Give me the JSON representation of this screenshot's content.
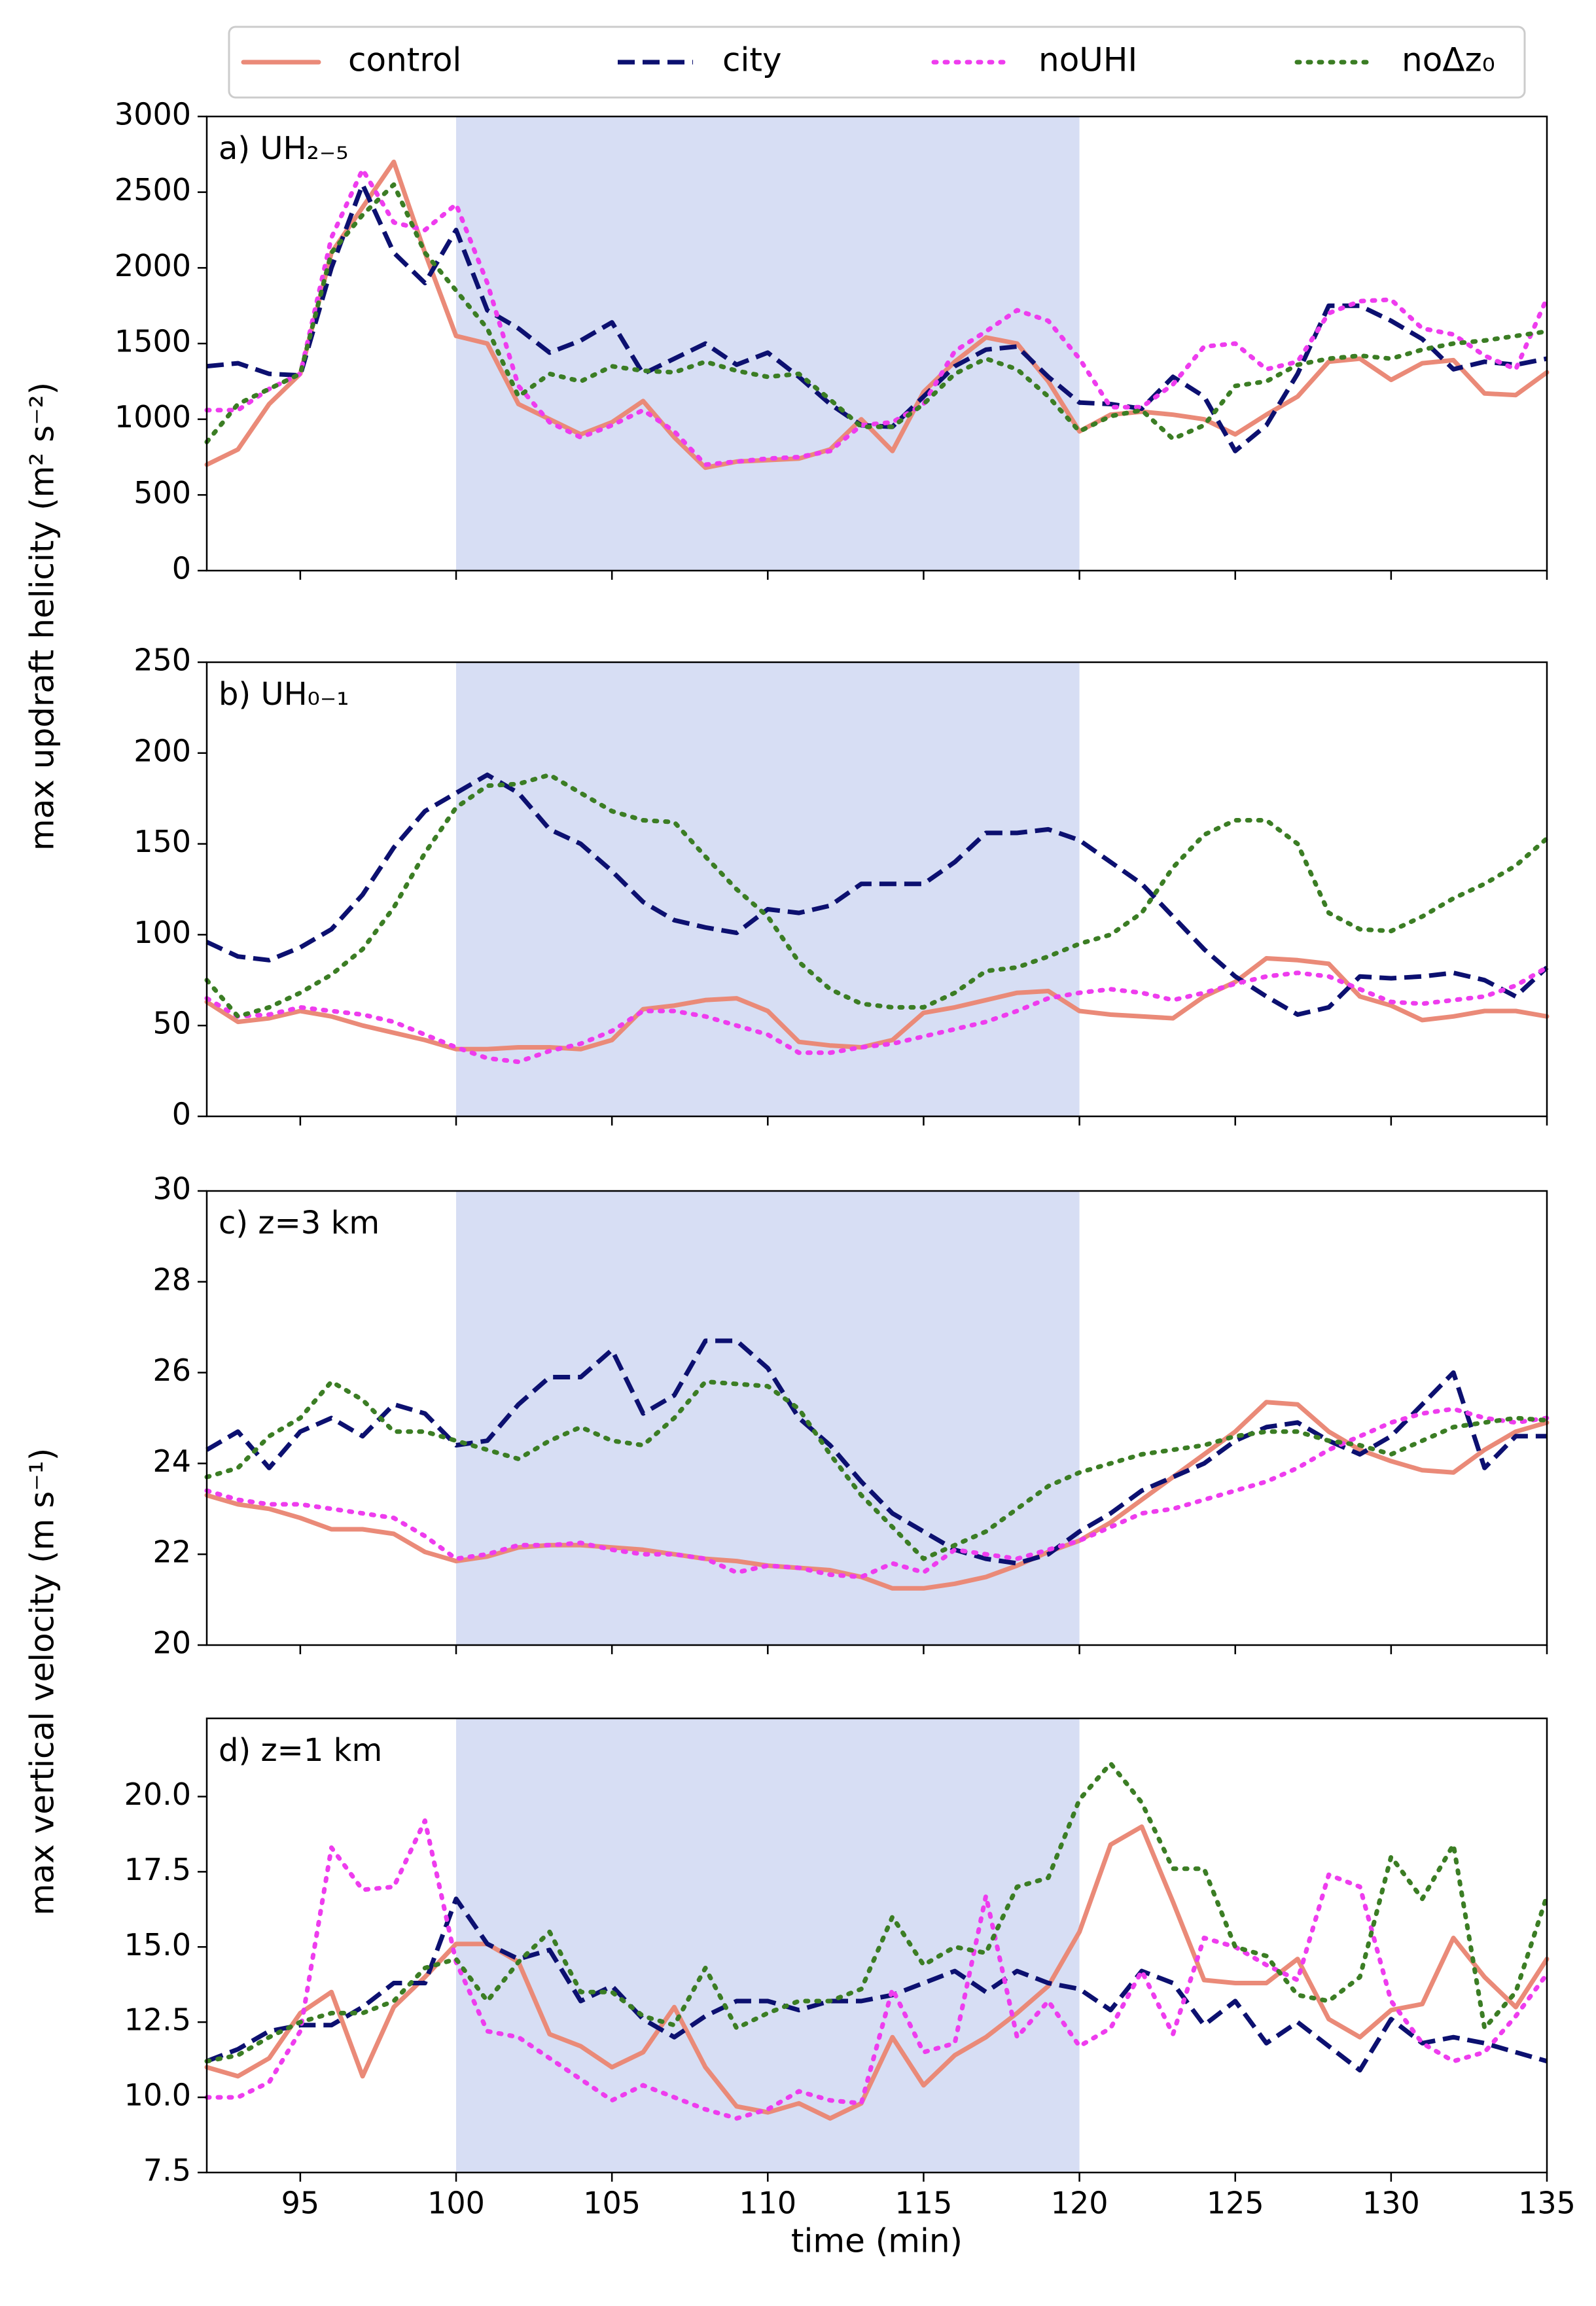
{
  "chart_data": [
    {
      "type": "line",
      "annotation": "a) UH₂₋₅",
      "ylabel": "max updraft helicity (m² s⁻²)",
      "x": [
        92,
        93,
        94,
        95,
        96,
        97,
        98,
        99,
        100,
        101,
        102,
        103,
        104,
        105,
        106,
        107,
        108,
        109,
        110,
        111,
        112,
        113,
        114,
        115,
        116,
        117,
        118,
        119,
        120,
        121,
        122,
        123,
        124,
        125,
        126,
        127,
        128,
        129,
        130,
        131,
        132,
        133,
        134,
        135
      ],
      "xlim": [
        92,
        135
      ],
      "xticks": [
        95,
        100,
        105,
        110,
        115,
        120,
        125,
        130,
        135
      ],
      "xtick_labels": false,
      "ylim": [
        0,
        3000
      ],
      "yticks": [
        0,
        500,
        1000,
        1500,
        2000,
        2500,
        3000
      ],
      "shade": [
        100,
        120
      ],
      "shade_color": "#d7def4",
      "series": [
        {
          "name": "control",
          "color": "#ea8a78",
          "style": "solid",
          "values": [
            700,
            800,
            1100,
            1300,
            2100,
            2400,
            2700,
            2100,
            1550,
            1500,
            1100,
            1000,
            900,
            980,
            1120,
            880,
            680,
            720,
            730,
            740,
            800,
            1000,
            790,
            1180,
            1380,
            1540,
            1500,
            1250,
            920,
            1030,
            1050,
            1030,
            1000,
            900,
            1030,
            1150,
            1380,
            1400,
            1260,
            1370,
            1390,
            1170,
            1160,
            1310
          ]
        },
        {
          "name": "city",
          "color": "#0c1070",
          "style": "dashed",
          "values": [
            1350,
            1370,
            1300,
            1290,
            2000,
            2550,
            2100,
            1900,
            2250,
            1720,
            1600,
            1440,
            1520,
            1640,
            1300,
            1400,
            1500,
            1360,
            1440,
            1280,
            1100,
            960,
            950,
            1150,
            1350,
            1460,
            1480,
            1280,
            1110,
            1100,
            1070,
            1280,
            1150,
            790,
            960,
            1300,
            1750,
            1750,
            1650,
            1530,
            1330,
            1380,
            1360,
            1400
          ]
        },
        {
          "name": "noUHI",
          "color": "#ee3cee",
          "style": "dotted",
          "values": [
            1060,
            1060,
            1200,
            1300,
            2200,
            2650,
            2300,
            2250,
            2420,
            1900,
            1220,
            980,
            880,
            960,
            1060,
            920,
            700,
            720,
            740,
            750,
            790,
            960,
            980,
            1100,
            1450,
            1580,
            1720,
            1650,
            1400,
            1080,
            1080,
            1230,
            1480,
            1500,
            1330,
            1380,
            1700,
            1780,
            1790,
            1600,
            1560,
            1420,
            1330,
            1800
          ]
        },
        {
          "name": "noΔz₀",
          "color": "#3b7d24",
          "style": "dotted",
          "values": [
            850,
            1100,
            1200,
            1300,
            2100,
            2350,
            2550,
            2100,
            1850,
            1600,
            1150,
            1300,
            1250,
            1350,
            1320,
            1310,
            1380,
            1320,
            1280,
            1300,
            1130,
            950,
            950,
            1100,
            1300,
            1400,
            1330,
            1150,
            920,
            1020,
            1060,
            870,
            960,
            1220,
            1250,
            1360,
            1400,
            1420,
            1400,
            1460,
            1500,
            1520,
            1550,
            1580
          ]
        }
      ]
    },
    {
      "type": "line",
      "annotation": "b) UH₀₋₁",
      "x": [
        92,
        93,
        94,
        95,
        96,
        97,
        98,
        99,
        100,
        101,
        102,
        103,
        104,
        105,
        106,
        107,
        108,
        109,
        110,
        111,
        112,
        113,
        114,
        115,
        116,
        117,
        118,
        119,
        120,
        121,
        122,
        123,
        124,
        125,
        126,
        127,
        128,
        129,
        130,
        131,
        132,
        133,
        134,
        135
      ],
      "xlim": [
        92,
        135
      ],
      "xticks": [
        95,
        100,
        105,
        110,
        115,
        120,
        125,
        130,
        135
      ],
      "xtick_labels": false,
      "ylim": [
        0,
        250
      ],
      "yticks": [
        0,
        50,
        100,
        150,
        200,
        250
      ],
      "shade": [
        100,
        120
      ],
      "series": [
        {
          "values": [
            63,
            52,
            54,
            58,
            55,
            50,
            46,
            42,
            37,
            37,
            38,
            38,
            37,
            42,
            59,
            61,
            64,
            65,
            58,
            41,
            39,
            38,
            42,
            57,
            60,
            64,
            68,
            69,
            58,
            56,
            55,
            54,
            66,
            74,
            87,
            86,
            84,
            66,
            61,
            53,
            55,
            58,
            58,
            55
          ]
        },
        {
          "values": [
            96,
            88,
            86,
            93,
            103,
            122,
            148,
            168,
            178,
            188,
            178,
            158,
            150,
            135,
            118,
            108,
            104,
            101,
            114,
            112,
            116,
            128,
            128,
            128,
            140,
            156,
            156,
            158,
            152,
            140,
            128,
            110,
            92,
            77,
            66,
            56,
            60,
            77,
            76,
            77,
            79,
            75,
            66,
            82
          ]
        },
        {
          "values": [
            65,
            55,
            56,
            60,
            58,
            56,
            52,
            45,
            38,
            32,
            30,
            36,
            40,
            47,
            58,
            58,
            55,
            50,
            45,
            35,
            35,
            38,
            40,
            44,
            48,
            52,
            58,
            65,
            68,
            70,
            68,
            64,
            68,
            73,
            77,
            79,
            77,
            70,
            63,
            62,
            64,
            66,
            72,
            82
          ]
        },
        {
          "values": [
            75,
            55,
            60,
            68,
            78,
            92,
            115,
            145,
            170,
            182,
            183,
            188,
            178,
            168,
            163,
            162,
            143,
            125,
            110,
            85,
            70,
            62,
            60,
            60,
            68,
            80,
            82,
            88,
            95,
            100,
            112,
            137,
            155,
            163,
            163,
            150,
            112,
            103,
            102,
            110,
            120,
            128,
            138,
            153
          ]
        }
      ]
    },
    {
      "type": "line",
      "annotation": "c) z=3 km",
      "ylabel": "max vertical velocity (m s⁻¹)",
      "x": [
        92,
        93,
        94,
        95,
        96,
        97,
        98,
        99,
        100,
        101,
        102,
        103,
        104,
        105,
        106,
        107,
        108,
        109,
        110,
        111,
        112,
        113,
        114,
        115,
        116,
        117,
        118,
        119,
        120,
        121,
        122,
        123,
        124,
        125,
        126,
        127,
        128,
        129,
        130,
        131,
        132,
        133,
        134,
        135
      ],
      "xlim": [
        92,
        135
      ],
      "xticks": [
        95,
        100,
        105,
        110,
        115,
        120,
        125,
        130,
        135
      ],
      "xtick_labels": false,
      "ylim": [
        20,
        30
      ],
      "yticks": [
        20,
        22,
        24,
        26,
        28,
        30
      ],
      "shade": [
        100,
        120
      ],
      "series": [
        {
          "values": [
            23.3,
            23.1,
            23.0,
            22.8,
            22.55,
            22.55,
            22.45,
            22.05,
            21.85,
            21.95,
            22.15,
            22.2,
            22.2,
            22.15,
            22.1,
            22.0,
            21.9,
            21.85,
            21.75,
            21.7,
            21.65,
            21.5,
            21.25,
            21.25,
            21.35,
            21.5,
            21.75,
            22.05,
            22.3,
            22.7,
            23.2,
            23.7,
            24.2,
            24.7,
            25.35,
            25.3,
            24.7,
            24.3,
            24.05,
            23.85,
            23.8,
            24.3,
            24.7,
            24.9
          ]
        },
        {
          "values": [
            24.3,
            24.7,
            23.9,
            24.7,
            25.0,
            24.6,
            25.3,
            25.1,
            24.4,
            24.5,
            25.3,
            25.9,
            25.9,
            26.5,
            25.1,
            25.5,
            26.7,
            26.7,
            26.1,
            25.0,
            24.4,
            23.6,
            22.9,
            22.5,
            22.1,
            21.9,
            21.8,
            22.0,
            22.5,
            22.9,
            23.4,
            23.7,
            24.0,
            24.5,
            24.8,
            24.9,
            24.5,
            24.2,
            24.6,
            25.3,
            26.0,
            23.9,
            24.6,
            24.6
          ]
        },
        {
          "values": [
            23.4,
            23.2,
            23.1,
            23.1,
            23.0,
            22.9,
            22.8,
            22.4,
            21.9,
            22.0,
            22.2,
            22.2,
            22.25,
            22.1,
            22.0,
            22.0,
            21.9,
            21.6,
            21.75,
            21.7,
            21.55,
            21.5,
            21.8,
            21.6,
            22.1,
            22.0,
            21.9,
            22.1,
            22.3,
            22.6,
            22.9,
            23.0,
            23.2,
            23.4,
            23.6,
            23.9,
            24.3,
            24.6,
            24.9,
            25.1,
            25.2,
            25.0,
            24.9,
            25.0
          ]
        },
        {
          "values": [
            23.7,
            23.9,
            24.6,
            25.0,
            25.8,
            25.4,
            24.7,
            24.7,
            24.5,
            24.3,
            24.1,
            24.5,
            24.8,
            24.5,
            24.4,
            25.0,
            25.8,
            25.75,
            25.7,
            25.2,
            24.2,
            23.3,
            22.6,
            21.9,
            22.2,
            22.5,
            23.0,
            23.5,
            23.8,
            24.0,
            24.2,
            24.3,
            24.4,
            24.6,
            24.7,
            24.7,
            24.5,
            24.4,
            24.2,
            24.5,
            24.8,
            24.9,
            25.0,
            24.95
          ]
        }
      ]
    },
    {
      "type": "line",
      "annotation": "d) z=1 km",
      "xlabel": "time (min)",
      "x": [
        92,
        93,
        94,
        95,
        96,
        97,
        98,
        99,
        100,
        101,
        102,
        103,
        104,
        105,
        106,
        107,
        108,
        109,
        110,
        111,
        112,
        113,
        114,
        115,
        116,
        117,
        118,
        119,
        120,
        121,
        122,
        123,
        124,
        125,
        126,
        127,
        128,
        129,
        130,
        131,
        132,
        133,
        134,
        135
      ],
      "xlim": [
        92,
        135
      ],
      "xticks": [
        95,
        100,
        105,
        110,
        115,
        120,
        125,
        130,
        135
      ],
      "xtick_labels": true,
      "ylim": [
        7.5,
        22.6
      ],
      "yticks": [
        7.5,
        {
          "value": 10,
          "label": "10.0"
        },
        12.5,
        {
          "value": 15,
          "label": "15.0"
        },
        17.5,
        {
          "value": 20,
          "label": "20.0"
        }
      ],
      "shade": [
        100,
        120
      ],
      "series": [
        {
          "values": [
            11.0,
            10.7,
            11.3,
            12.8,
            13.5,
            10.7,
            13.0,
            14.0,
            15.1,
            15.1,
            14.5,
            12.1,
            11.7,
            11.0,
            11.5,
            13.0,
            11.0,
            9.7,
            9.5,
            9.8,
            9.3,
            9.8,
            12.0,
            10.4,
            11.4,
            12.0,
            12.8,
            13.7,
            15.5,
            18.4,
            19.0,
            16.5,
            13.9,
            13.8,
            13.8,
            14.6,
            12.6,
            12.0,
            12.9,
            13.1,
            15.3,
            14.0,
            13.0,
            14.6
          ]
        },
        {
          "values": [
            11.2,
            11.6,
            12.2,
            12.4,
            12.4,
            13.0,
            13.8,
            13.8,
            16.6,
            15.1,
            14.6,
            14.9,
            13.2,
            13.7,
            12.6,
            12.0,
            12.7,
            13.2,
            13.2,
            12.9,
            13.2,
            13.2,
            13.4,
            13.8,
            14.2,
            13.5,
            14.2,
            13.8,
            13.6,
            12.9,
            14.2,
            13.8,
            12.4,
            13.2,
            11.8,
            12.5,
            11.7,
            10.9,
            12.6,
            11.8,
            12.0,
            11.8,
            11.5,
            11.2
          ]
        },
        {
          "values": [
            10.0,
            10.0,
            10.5,
            12.2,
            18.3,
            16.9,
            17.0,
            19.2,
            14.5,
            12.2,
            12.0,
            11.3,
            10.6,
            9.9,
            10.4,
            10.0,
            9.6,
            9.3,
            9.6,
            10.2,
            9.9,
            9.8,
            13.6,
            11.5,
            11.8,
            16.7,
            12.0,
            13.2,
            11.7,
            12.3,
            14.2,
            12.1,
            15.3,
            15.0,
            14.4,
            13.9,
            17.4,
            17.0,
            13.2,
            11.8,
            11.2,
            11.5,
            12.7,
            14.1
          ]
        },
        {
          "values": [
            11.2,
            11.4,
            12.0,
            12.5,
            12.8,
            12.8,
            13.2,
            14.3,
            14.6,
            13.2,
            14.5,
            15.5,
            13.5,
            13.5,
            12.7,
            12.4,
            14.3,
            12.3,
            12.8,
            13.2,
            13.2,
            13.6,
            16.0,
            14.4,
            15.0,
            14.8,
            17.0,
            17.3,
            19.9,
            21.1,
            19.8,
            17.6,
            17.6,
            15.0,
            14.7,
            13.4,
            13.2,
            14.0,
            18.0,
            16.6,
            18.4,
            12.3,
            13.5,
            16.7
          ]
        }
      ]
    }
  ]
}
